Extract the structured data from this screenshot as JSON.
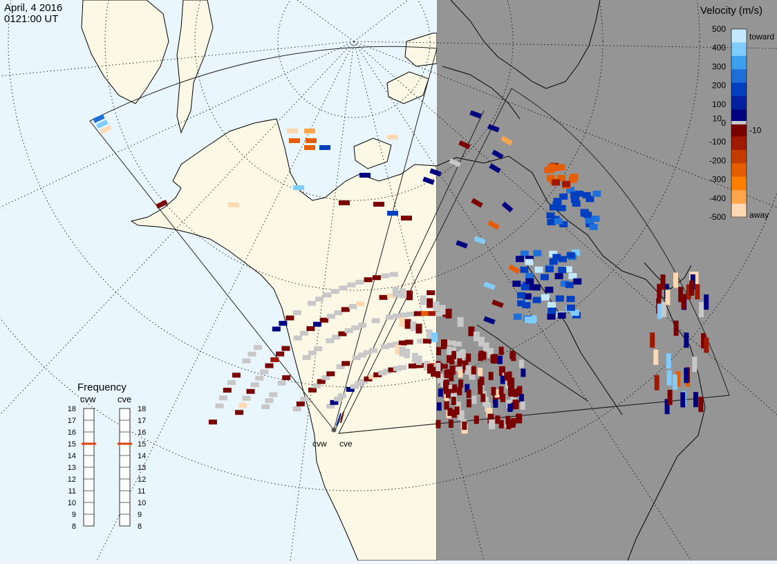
{
  "header": {
    "date": "April, 4 2016",
    "time": "0121:00 UT"
  },
  "colorbar": {
    "title": "Velocity (m/s)",
    "toward_label": "toward",
    "away_label": "away",
    "tick_labels": [
      "500",
      "400",
      "300",
      "200",
      "100",
      "10",
      "0",
      "-10",
      "-100",
      "-200",
      "-300",
      "-400",
      "-500"
    ],
    "range": [
      -500,
      500
    ],
    "ground_scatter_color": "#c8c8c8",
    "colors": [
      "#ffd9b3",
      "#ffa64d",
      "#ff8000",
      "#e65c00",
      "#c43c00",
      "#a01800",
      "#7a0000",
      "#000080",
      "#0020a0",
      "#0040c0",
      "#1f6fd9",
      "#3d9ff0",
      "#80ccff",
      "#c4e8ff"
    ]
  },
  "frequency": {
    "title": "Frequency",
    "radars": [
      "cvw",
      "cve"
    ],
    "scale_labels": [
      "18",
      "17",
      "16",
      "15",
      "14",
      "13",
      "12",
      "11",
      "10",
      "9",
      "8"
    ],
    "range_mhz": [
      8,
      18
    ],
    "cvw_mhz": 15,
    "cve_mhz": 15,
    "marker_color": "#e04010"
  },
  "map": {
    "ocean_color": "#eaf6fd",
    "land_color": "#fbf8e6",
    "night_color": "#959595",
    "grid_style": "dotted",
    "radar_labels": {
      "cvw": "cvw",
      "cve": "cve"
    }
  }
}
